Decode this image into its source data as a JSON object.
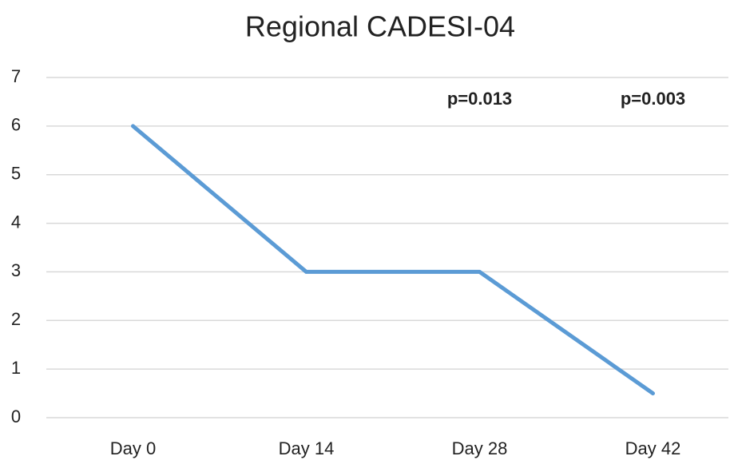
{
  "chart_data": {
    "type": "line",
    "title": "Regional CADESI-04",
    "categories": [
      "Day 0",
      "Day 14",
      "Day 28",
      "Day 42"
    ],
    "series": [
      {
        "color": "#5b9bd5",
        "values": [
          6,
          3,
          3,
          0.5
        ]
      }
    ],
    "ylim": [
      0,
      7
    ],
    "yticks": [
      0,
      1,
      2,
      3,
      4,
      5,
      6,
      7
    ],
    "grid": true,
    "annotations": [
      {
        "text": "p=0.013",
        "x": "Day 28"
      },
      {
        "text": "p=0.003",
        "x": "Day 42"
      }
    ]
  }
}
